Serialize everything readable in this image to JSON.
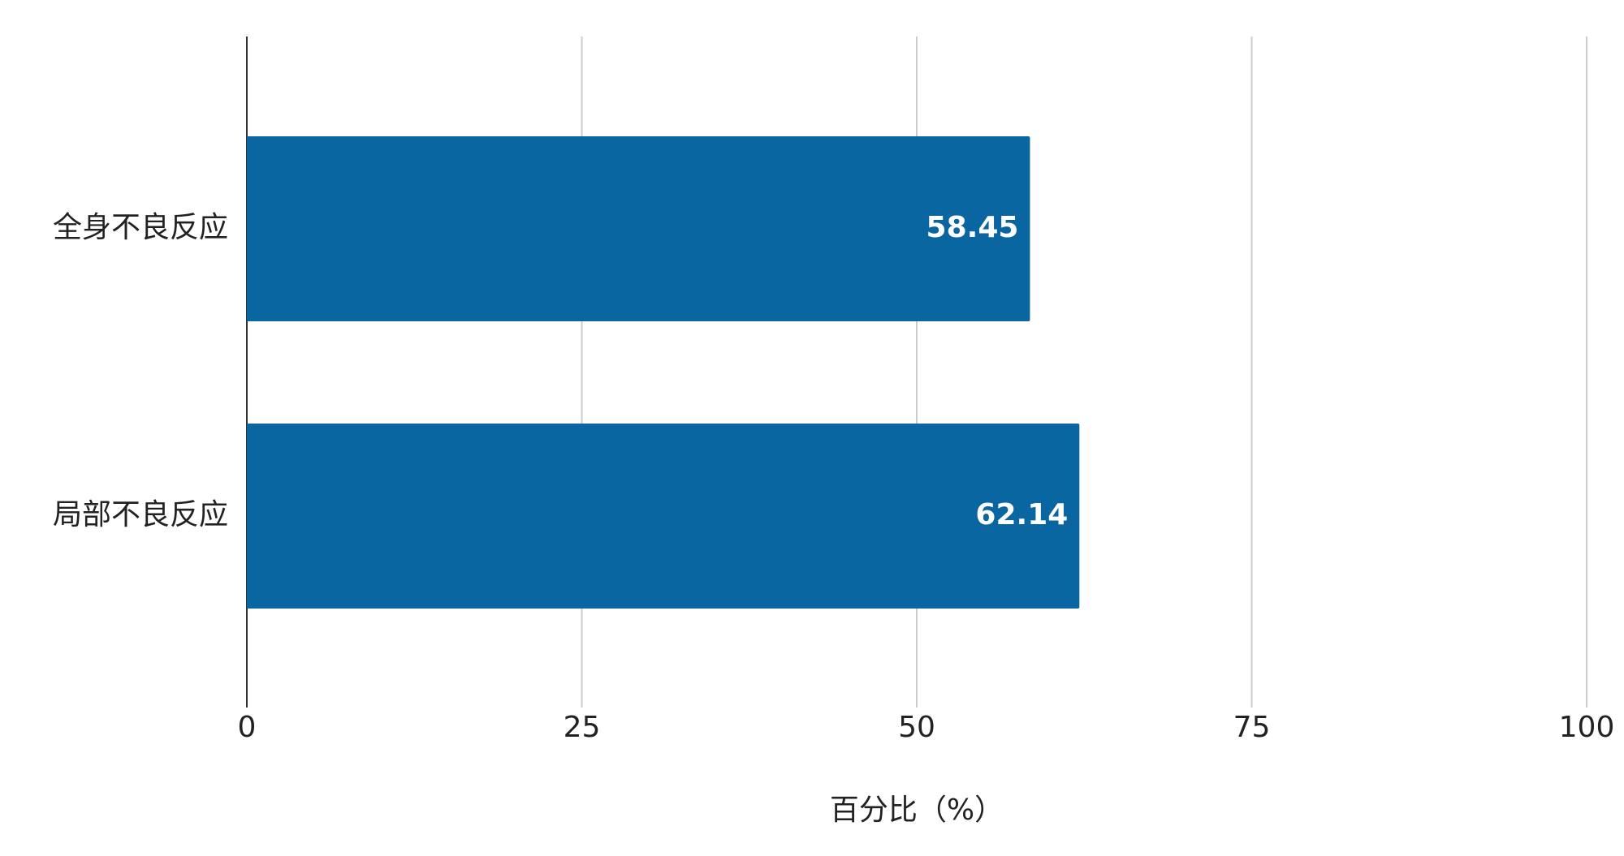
{
  "chart_data": {
    "type": "hbar",
    "categories": [
      "全身不良反应",
      "局部不良反应"
    ],
    "values": [
      58.45,
      62.14
    ],
    "color": "#0a66a0",
    "xlabel": "百分比（%）",
    "xlim": [
      0,
      100
    ],
    "xticks": [
      0,
      25,
      50,
      75,
      100
    ],
    "grid": true
  }
}
